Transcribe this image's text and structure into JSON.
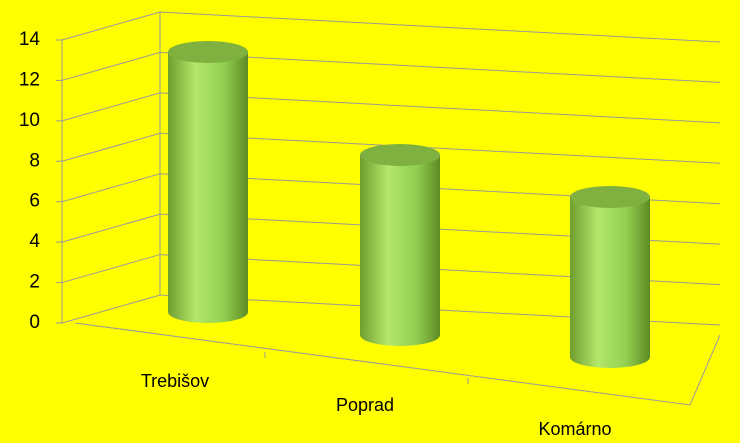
{
  "chart_data": {
    "type": "bar",
    "categories": [
      "Trebišov",
      "Poprad",
      "Komárno"
    ],
    "values": [
      13,
      9,
      8
    ],
    "color": "#92d050",
    "ylim": [
      0,
      14
    ],
    "yticks": [
      0,
      2,
      4,
      6,
      8,
      10,
      12,
      14
    ],
    "grid": true,
    "background": "#ffff00"
  }
}
